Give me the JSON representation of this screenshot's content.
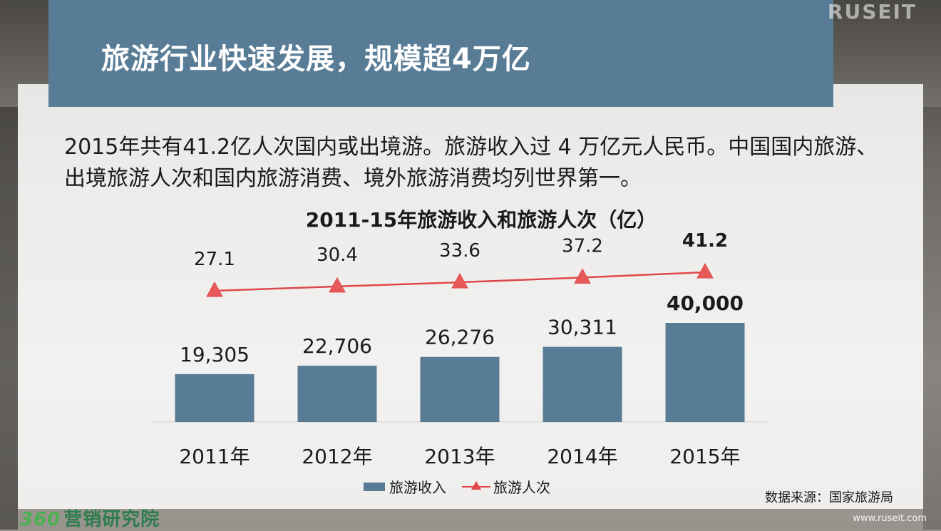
{
  "header": {
    "title": "旅游行业快速发展，规模超4万亿"
  },
  "intro": "2015年共有41.2亿人次国内或出境游。旅游收入过 4 万亿元人民币。中国国内旅游、出境旅游人次和国内旅游消费、境外旅游消费均列世界第一。",
  "footer": {
    "source": "数据来源：国家旅游局",
    "logo_num": "360",
    "logo_text": "营销研究院",
    "watermark": "www.ruseit.com",
    "watermark_top": "RUSEIT"
  },
  "colors": {
    "bar": "#587c96",
    "line": "#e04848",
    "header": "#587c96"
  },
  "chart_data": {
    "type": "bar",
    "title": "2011-15年旅游收入和旅游人次（亿）",
    "categories": [
      "2011年",
      "2012年",
      "2013年",
      "2014年",
      "2015年"
    ],
    "series": [
      {
        "name": "旅游收入",
        "type": "bar",
        "values": [
          19305,
          22706,
          26276,
          30311,
          40000
        ],
        "labels": [
          "19,305",
          "22,706",
          "26,276",
          "30,311",
          "40,000"
        ],
        "bold_last": true
      },
      {
        "name": "旅游人次",
        "type": "line",
        "marker": "triangle",
        "values": [
          27.1,
          30.4,
          33.6,
          37.2,
          41.2
        ],
        "labels": [
          "27.1",
          "30.4",
          "33.6",
          "37.2",
          "41.2"
        ],
        "bold_last": true
      }
    ],
    "legend": "bottom",
    "grid": false
  }
}
